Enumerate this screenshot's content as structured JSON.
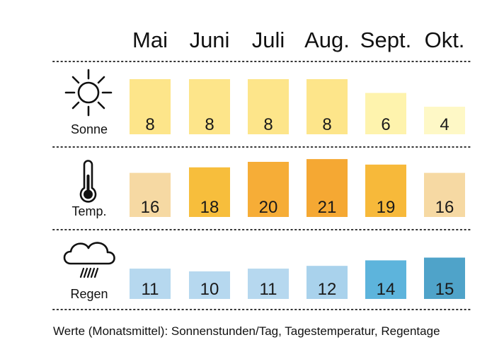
{
  "chart_data": {
    "type": "table",
    "categories": [
      "Mai",
      "Juni",
      "Juli",
      "Aug.",
      "Sept.",
      "Okt."
    ],
    "rows": [
      {
        "key": "sun",
        "label": "Sonne",
        "icon": "sun-icon",
        "values": [
          8,
          8,
          8,
          8,
          6,
          4
        ],
        "colors": [
          "#fde58a",
          "#fde58a",
          "#fde58a",
          "#fde58a",
          "#fef3ad",
          "#fef8c6"
        ]
      },
      {
        "key": "temp",
        "label": "Temp.",
        "icon": "thermometer-icon",
        "values": [
          16,
          18,
          20,
          21,
          19,
          16
        ],
        "colors": [
          "#f6d9a3",
          "#f7be3c",
          "#f6ad37",
          "#f5a833",
          "#f7b93a",
          "#f6d9a3"
        ]
      },
      {
        "key": "rain",
        "label": "Regen",
        "icon": "rain-cloud-icon",
        "values": [
          11,
          10,
          11,
          12,
          14,
          15
        ],
        "colors": [
          "#b6d8ef",
          "#b6d8ef",
          "#b6d8ef",
          "#a9d2ec",
          "#5db4dc",
          "#4fa3c9"
        ]
      }
    ],
    "footnote": "Werte (Monatsmittel): Sonnenstunden/Tag, Tagestemperatur, Regentage"
  }
}
